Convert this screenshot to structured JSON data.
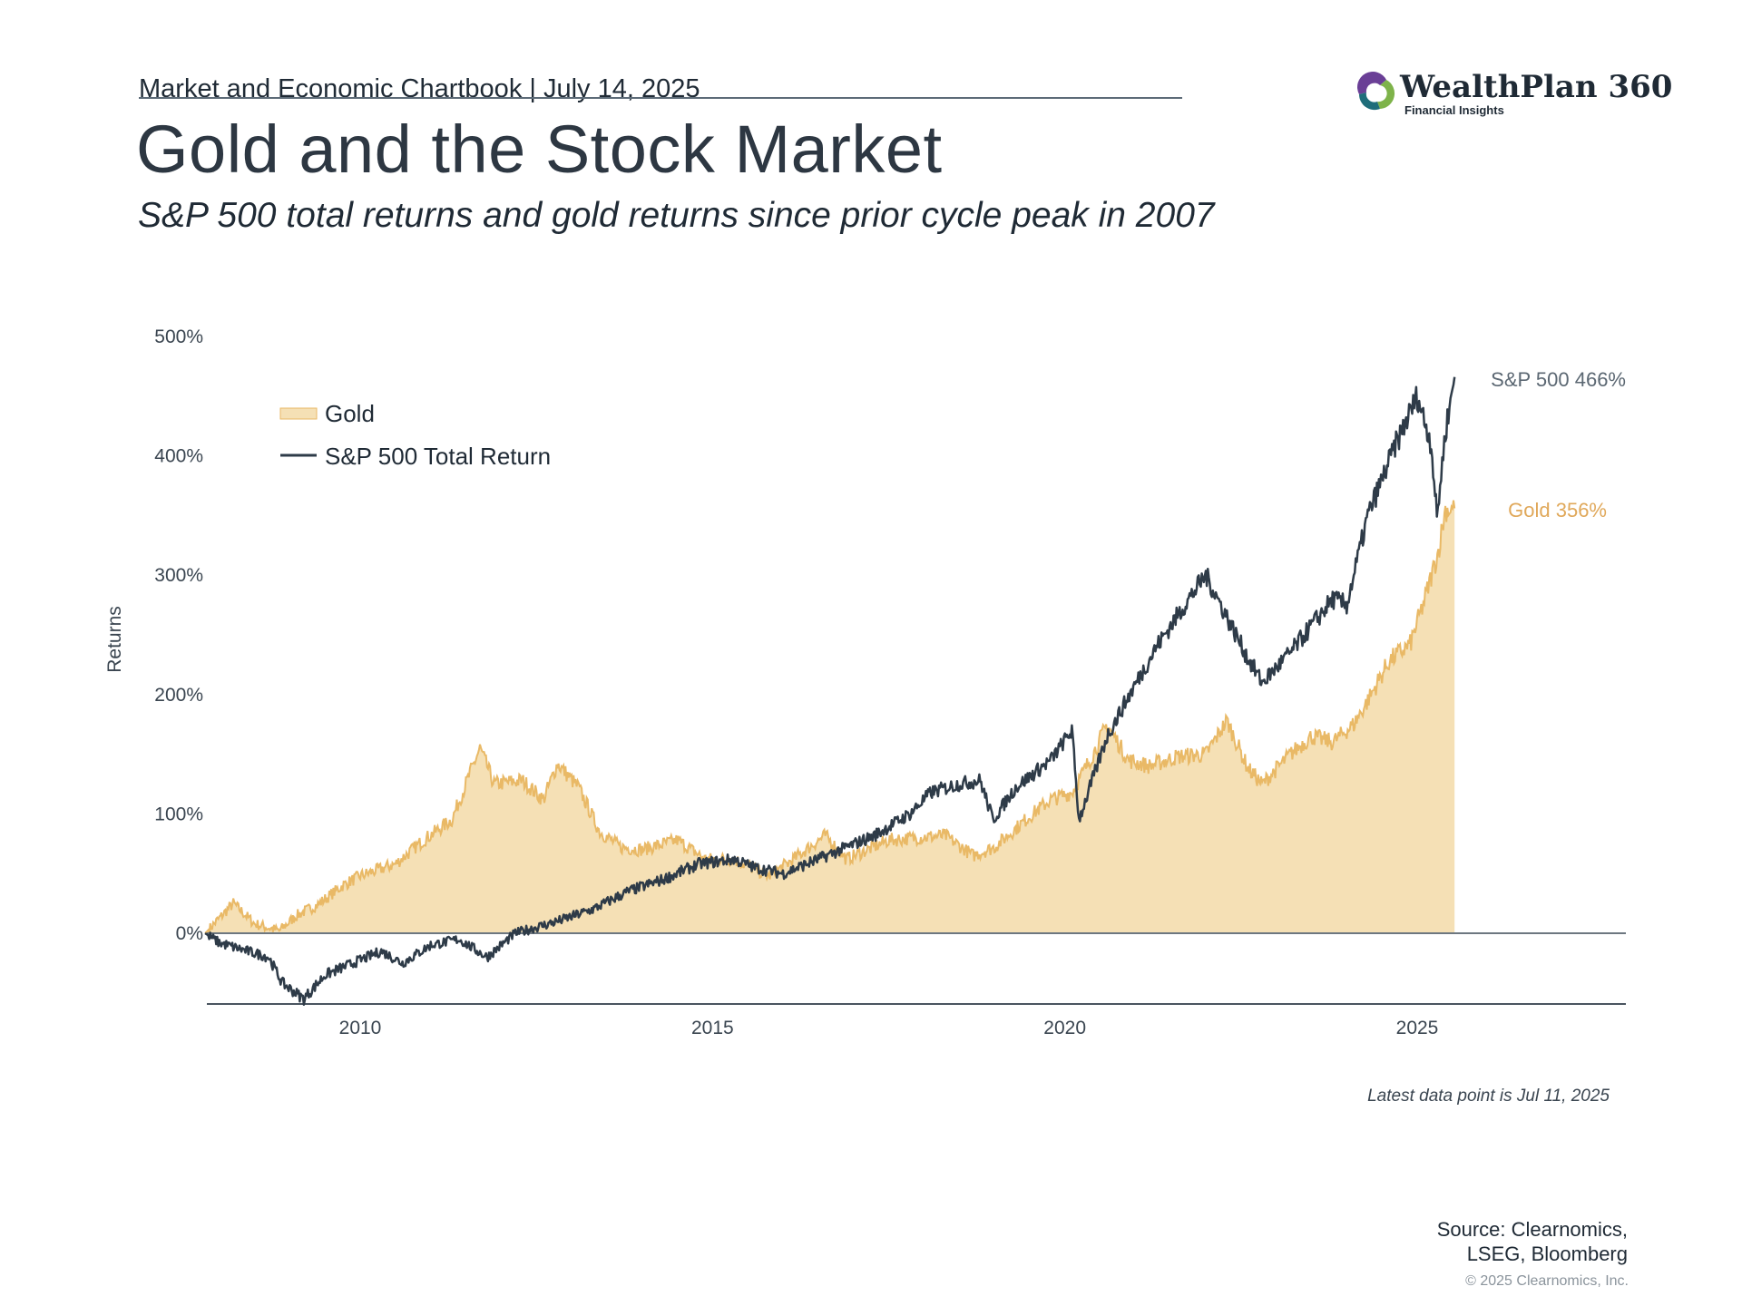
{
  "header": {
    "chartbook": "Market and Economic Chartbook | July 14, 2025",
    "title": "Gold and the Stock Market",
    "subtitle": "S&P 500 total returns and gold returns since prior cycle peak in 2007"
  },
  "logo": {
    "name": "WealthPlan 360",
    "tagline": "Financial Insights"
  },
  "chart_data": {
    "type": "area",
    "ylabel": "Returns",
    "ylim": [
      -60,
      500
    ],
    "yticks": [
      {
        "value": 0,
        "label": "0%"
      },
      {
        "value": 100,
        "label": "100%"
      },
      {
        "value": 200,
        "label": "200%"
      },
      {
        "value": 300,
        "label": "300%"
      },
      {
        "value": 400,
        "label": "400%"
      },
      {
        "value": 500,
        "label": "500%"
      }
    ],
    "xlim": [
      2007.8,
      2028.0
    ],
    "xticks": [
      {
        "value": 2010,
        "label": "2010"
      },
      {
        "value": 2015,
        "label": "2015"
      },
      {
        "value": 2020,
        "label": "2020"
      },
      {
        "value": 2025,
        "label": "2025"
      }
    ],
    "grid": false,
    "legend": {
      "position": "top-left",
      "items": [
        "Gold",
        "S&P 500 Total Return"
      ]
    },
    "series": [
      {
        "name": "Gold",
        "style": "area",
        "color": "#e9b966",
        "fill": "#f5e0b5",
        "end_label": "Gold 356%",
        "points": [
          [
            2007.8,
            0
          ],
          [
            2008.2,
            25
          ],
          [
            2008.5,
            8
          ],
          [
            2008.85,
            2
          ],
          [
            2009.1,
            15
          ],
          [
            2009.4,
            24
          ],
          [
            2009.75,
            40
          ],
          [
            2010.0,
            48
          ],
          [
            2010.5,
            58
          ],
          [
            2010.9,
            78
          ],
          [
            2011.3,
            95
          ],
          [
            2011.7,
            155
          ],
          [
            2011.9,
            125
          ],
          [
            2012.3,
            128
          ],
          [
            2012.6,
            112
          ],
          [
            2012.8,
            142
          ],
          [
            2013.1,
            122
          ],
          [
            2013.4,
            85
          ],
          [
            2013.7,
            72
          ],
          [
            2014.0,
            70
          ],
          [
            2014.5,
            78
          ],
          [
            2014.9,
            62
          ],
          [
            2015.3,
            62
          ],
          [
            2015.8,
            48
          ],
          [
            2016.1,
            60
          ],
          [
            2016.6,
            82
          ],
          [
            2016.9,
            62
          ],
          [
            2017.5,
            78
          ],
          [
            2017.9,
            80
          ],
          [
            2018.3,
            82
          ],
          [
            2018.7,
            65
          ],
          [
            2019.0,
            72
          ],
          [
            2019.5,
            98
          ],
          [
            2019.8,
            112
          ],
          [
            2020.1,
            118
          ],
          [
            2020.4,
            150
          ],
          [
            2020.6,
            175
          ],
          [
            2020.9,
            145
          ],
          [
            2021.2,
            140
          ],
          [
            2021.6,
            148
          ],
          [
            2022.0,
            150
          ],
          [
            2022.3,
            178
          ],
          [
            2022.6,
            138
          ],
          [
            2022.8,
            125
          ],
          [
            2023.2,
            150
          ],
          [
            2023.5,
            165
          ],
          [
            2023.8,
            160
          ],
          [
            2024.1,
            175
          ],
          [
            2024.3,
            195
          ],
          [
            2024.6,
            228
          ],
          [
            2024.9,
            242
          ],
          [
            2025.1,
            278
          ],
          [
            2025.3,
            320
          ],
          [
            2025.4,
            355
          ],
          [
            2025.53,
            356
          ]
        ]
      },
      {
        "name": "S&P 500 Total Return",
        "style": "line",
        "color": "#2e3b48",
        "end_label": "S&P 500 466%",
        "points": [
          [
            2007.8,
            0
          ],
          [
            2008.0,
            -8
          ],
          [
            2008.4,
            -15
          ],
          [
            2008.7,
            -20
          ],
          [
            2008.9,
            -42
          ],
          [
            2009.2,
            -55
          ],
          [
            2009.5,
            -35
          ],
          [
            2009.9,
            -25
          ],
          [
            2010.3,
            -15
          ],
          [
            2010.6,
            -25
          ],
          [
            2011.0,
            -10
          ],
          [
            2011.4,
            -5
          ],
          [
            2011.8,
            -20
          ],
          [
            2012.2,
            0
          ],
          [
            2012.8,
            10
          ],
          [
            2013.3,
            20
          ],
          [
            2013.8,
            35
          ],
          [
            2014.3,
            45
          ],
          [
            2014.8,
            58
          ],
          [
            2015.3,
            62
          ],
          [
            2015.6,
            55
          ],
          [
            2016.0,
            50
          ],
          [
            2016.5,
            62
          ],
          [
            2016.9,
            72
          ],
          [
            2017.3,
            82
          ],
          [
            2017.8,
            100
          ],
          [
            2018.1,
            118
          ],
          [
            2018.5,
            125
          ],
          [
            2018.8,
            128
          ],
          [
            2018.98,
            95
          ],
          [
            2019.3,
            122
          ],
          [
            2019.8,
            145
          ],
          [
            2020.1,
            170
          ],
          [
            2020.2,
            95
          ],
          [
            2020.6,
            165
          ],
          [
            2020.9,
            198
          ],
          [
            2021.3,
            240
          ],
          [
            2021.7,
            275
          ],
          [
            2022.0,
            300
          ],
          [
            2022.3,
            265
          ],
          [
            2022.6,
            230
          ],
          [
            2022.8,
            210
          ],
          [
            2023.2,
            235
          ],
          [
            2023.6,
            265
          ],
          [
            2023.8,
            280
          ],
          [
            2024.0,
            275
          ],
          [
            2024.3,
            350
          ],
          [
            2024.7,
            410
          ],
          [
            2025.0,
            450
          ],
          [
            2025.2,
            410
          ],
          [
            2025.28,
            348
          ],
          [
            2025.4,
            420
          ],
          [
            2025.53,
            466
          ]
        ]
      }
    ]
  },
  "note": "Latest data point is Jul 11, 2025",
  "source": [
    "Source: Clearnomics,",
    "LSEG, Bloomberg"
  ],
  "copyright": "© 2025 Clearnomics, Inc."
}
